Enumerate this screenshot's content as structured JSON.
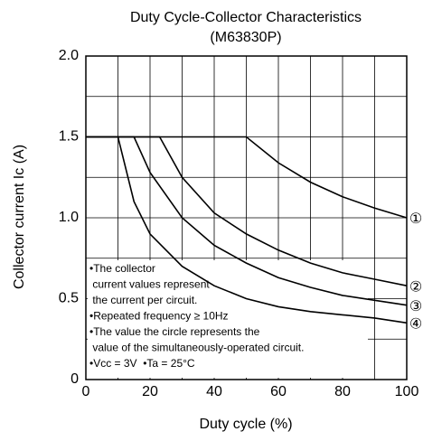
{
  "chart_data": {
    "type": "line",
    "title": [
      "Duty Cycle-Collector Characteristics",
      "(M63830P)"
    ],
    "xlabel": "Duty cycle  (%)",
    "ylabel": "Collector current  Ic (A)",
    "xlim": [
      0,
      100
    ],
    "xticks": [
      0,
      20,
      40,
      60,
      80,
      100
    ],
    "ylim": [
      0,
      2.0
    ],
    "yticks": [
      0,
      0.5,
      {
        "value": 1.0,
        "label": "1.0"
      },
      1.5,
      {
        "value": 2.0,
        "label": "2.0"
      }
    ],
    "xminorticks": [
      10,
      30,
      50,
      70,
      90
    ],
    "yminorticks": [
      0.25,
      0.75,
      1.25,
      1.75
    ],
    "grid": true,
    "series": [
      {
        "name": "①",
        "color": "#000000",
        "x": [
          0,
          50,
          60,
          70,
          80,
          90,
          100
        ],
        "values": [
          1.5,
          1.5,
          1.34,
          1.22,
          1.13,
          1.06,
          1.0
        ]
      },
      {
        "name": "②",
        "color": "#000000",
        "x": [
          0,
          23,
          30,
          40,
          50,
          60,
          70,
          80,
          90,
          100
        ],
        "values": [
          1.5,
          1.5,
          1.25,
          1.03,
          0.9,
          0.8,
          0.72,
          0.66,
          0.62,
          0.58
        ]
      },
      {
        "name": "③",
        "color": "#000000",
        "x": [
          0,
          15,
          20,
          30,
          40,
          50,
          60,
          70,
          80,
          90,
          100
        ],
        "values": [
          1.5,
          1.5,
          1.28,
          1.0,
          0.83,
          0.72,
          0.63,
          0.57,
          0.52,
          0.49,
          0.46
        ]
      },
      {
        "name": "④",
        "color": "#000000",
        "x": [
          0,
          10,
          15,
          20,
          30,
          40,
          50,
          60,
          70,
          80,
          90,
          100
        ],
        "values": [
          1.5,
          1.5,
          1.1,
          0.9,
          0.7,
          0.58,
          0.5,
          0.45,
          0.42,
          0.4,
          0.38,
          0.35
        ]
      }
    ],
    "annotations": [
      "•The collector",
      " current values represent",
      " the current per circuit.",
      "•Repeated frequency ≥ 10Hz",
      "•The value the circle represents the",
      " value of the simultaneously-operated circuit.",
      "•Vcc = 3V  •Ta = 25°C"
    ]
  }
}
